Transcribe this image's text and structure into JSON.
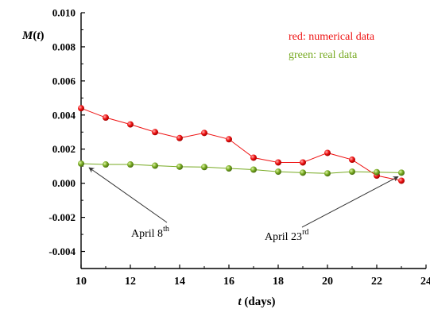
{
  "chart_data": {
    "type": "line",
    "xlabel_var": "t",
    "xlabel_rest": " (days)",
    "ylabel_var": "M",
    "ylabel_open": "(",
    "ylabel_arg": "t",
    "ylabel_close": ")",
    "xlim": [
      10,
      24
    ],
    "ylim": [
      -0.005,
      0.01
    ],
    "x_ticks": [
      10,
      12,
      14,
      16,
      18,
      20,
      22,
      24
    ],
    "x_tick_labels": [
      "10",
      "12",
      "14",
      "16",
      "18",
      "20",
      "22",
      "24"
    ],
    "y_ticks": [
      -0.004,
      -0.002,
      0.0,
      0.002,
      0.004,
      0.006,
      0.008,
      0.01
    ],
    "y_tick_labels": [
      "-0.004",
      "-0.002",
      "0.000",
      "0.002",
      "0.004",
      "0.006",
      "0.008",
      "0.010"
    ],
    "grid": false,
    "series": [
      {
        "color": "#ee1111",
        "x": [
          10,
          11,
          12,
          13,
          14,
          15,
          16,
          17,
          18,
          19,
          20,
          21,
          22,
          23
        ],
        "y": [
          0.0044,
          0.00385,
          0.00345,
          0.003,
          0.00265,
          0.00295,
          0.00258,
          0.0015,
          0.00122,
          0.00122,
          0.00178,
          0.00138,
          0.00045,
          0.00015
        ]
      },
      {
        "color": "#77aa22",
        "x": [
          10,
          11,
          12,
          13,
          14,
          15,
          16,
          17,
          18,
          19,
          20,
          21,
          22,
          23
        ],
        "y": [
          0.00115,
          0.0011,
          0.0011,
          0.00103,
          0.00097,
          0.00095,
          0.00087,
          0.0008,
          0.00068,
          0.00062,
          0.00058,
          0.00068,
          0.00065,
          0.00062
        ]
      }
    ],
    "legend": {
      "placement": "top-right",
      "entries": [
        {
          "text": "red: numerical data",
          "color": "#ee1111"
        },
        {
          "text": "green: real data",
          "color": "#77aa22"
        }
      ]
    },
    "annotations": [
      {
        "text": "April 8",
        "sup": "th",
        "arrow_to": [
          10,
          0.00115
        ]
      },
      {
        "text": "April 23",
        "sup": "rd",
        "arrow_to": [
          23,
          0.00062
        ]
      }
    ]
  }
}
